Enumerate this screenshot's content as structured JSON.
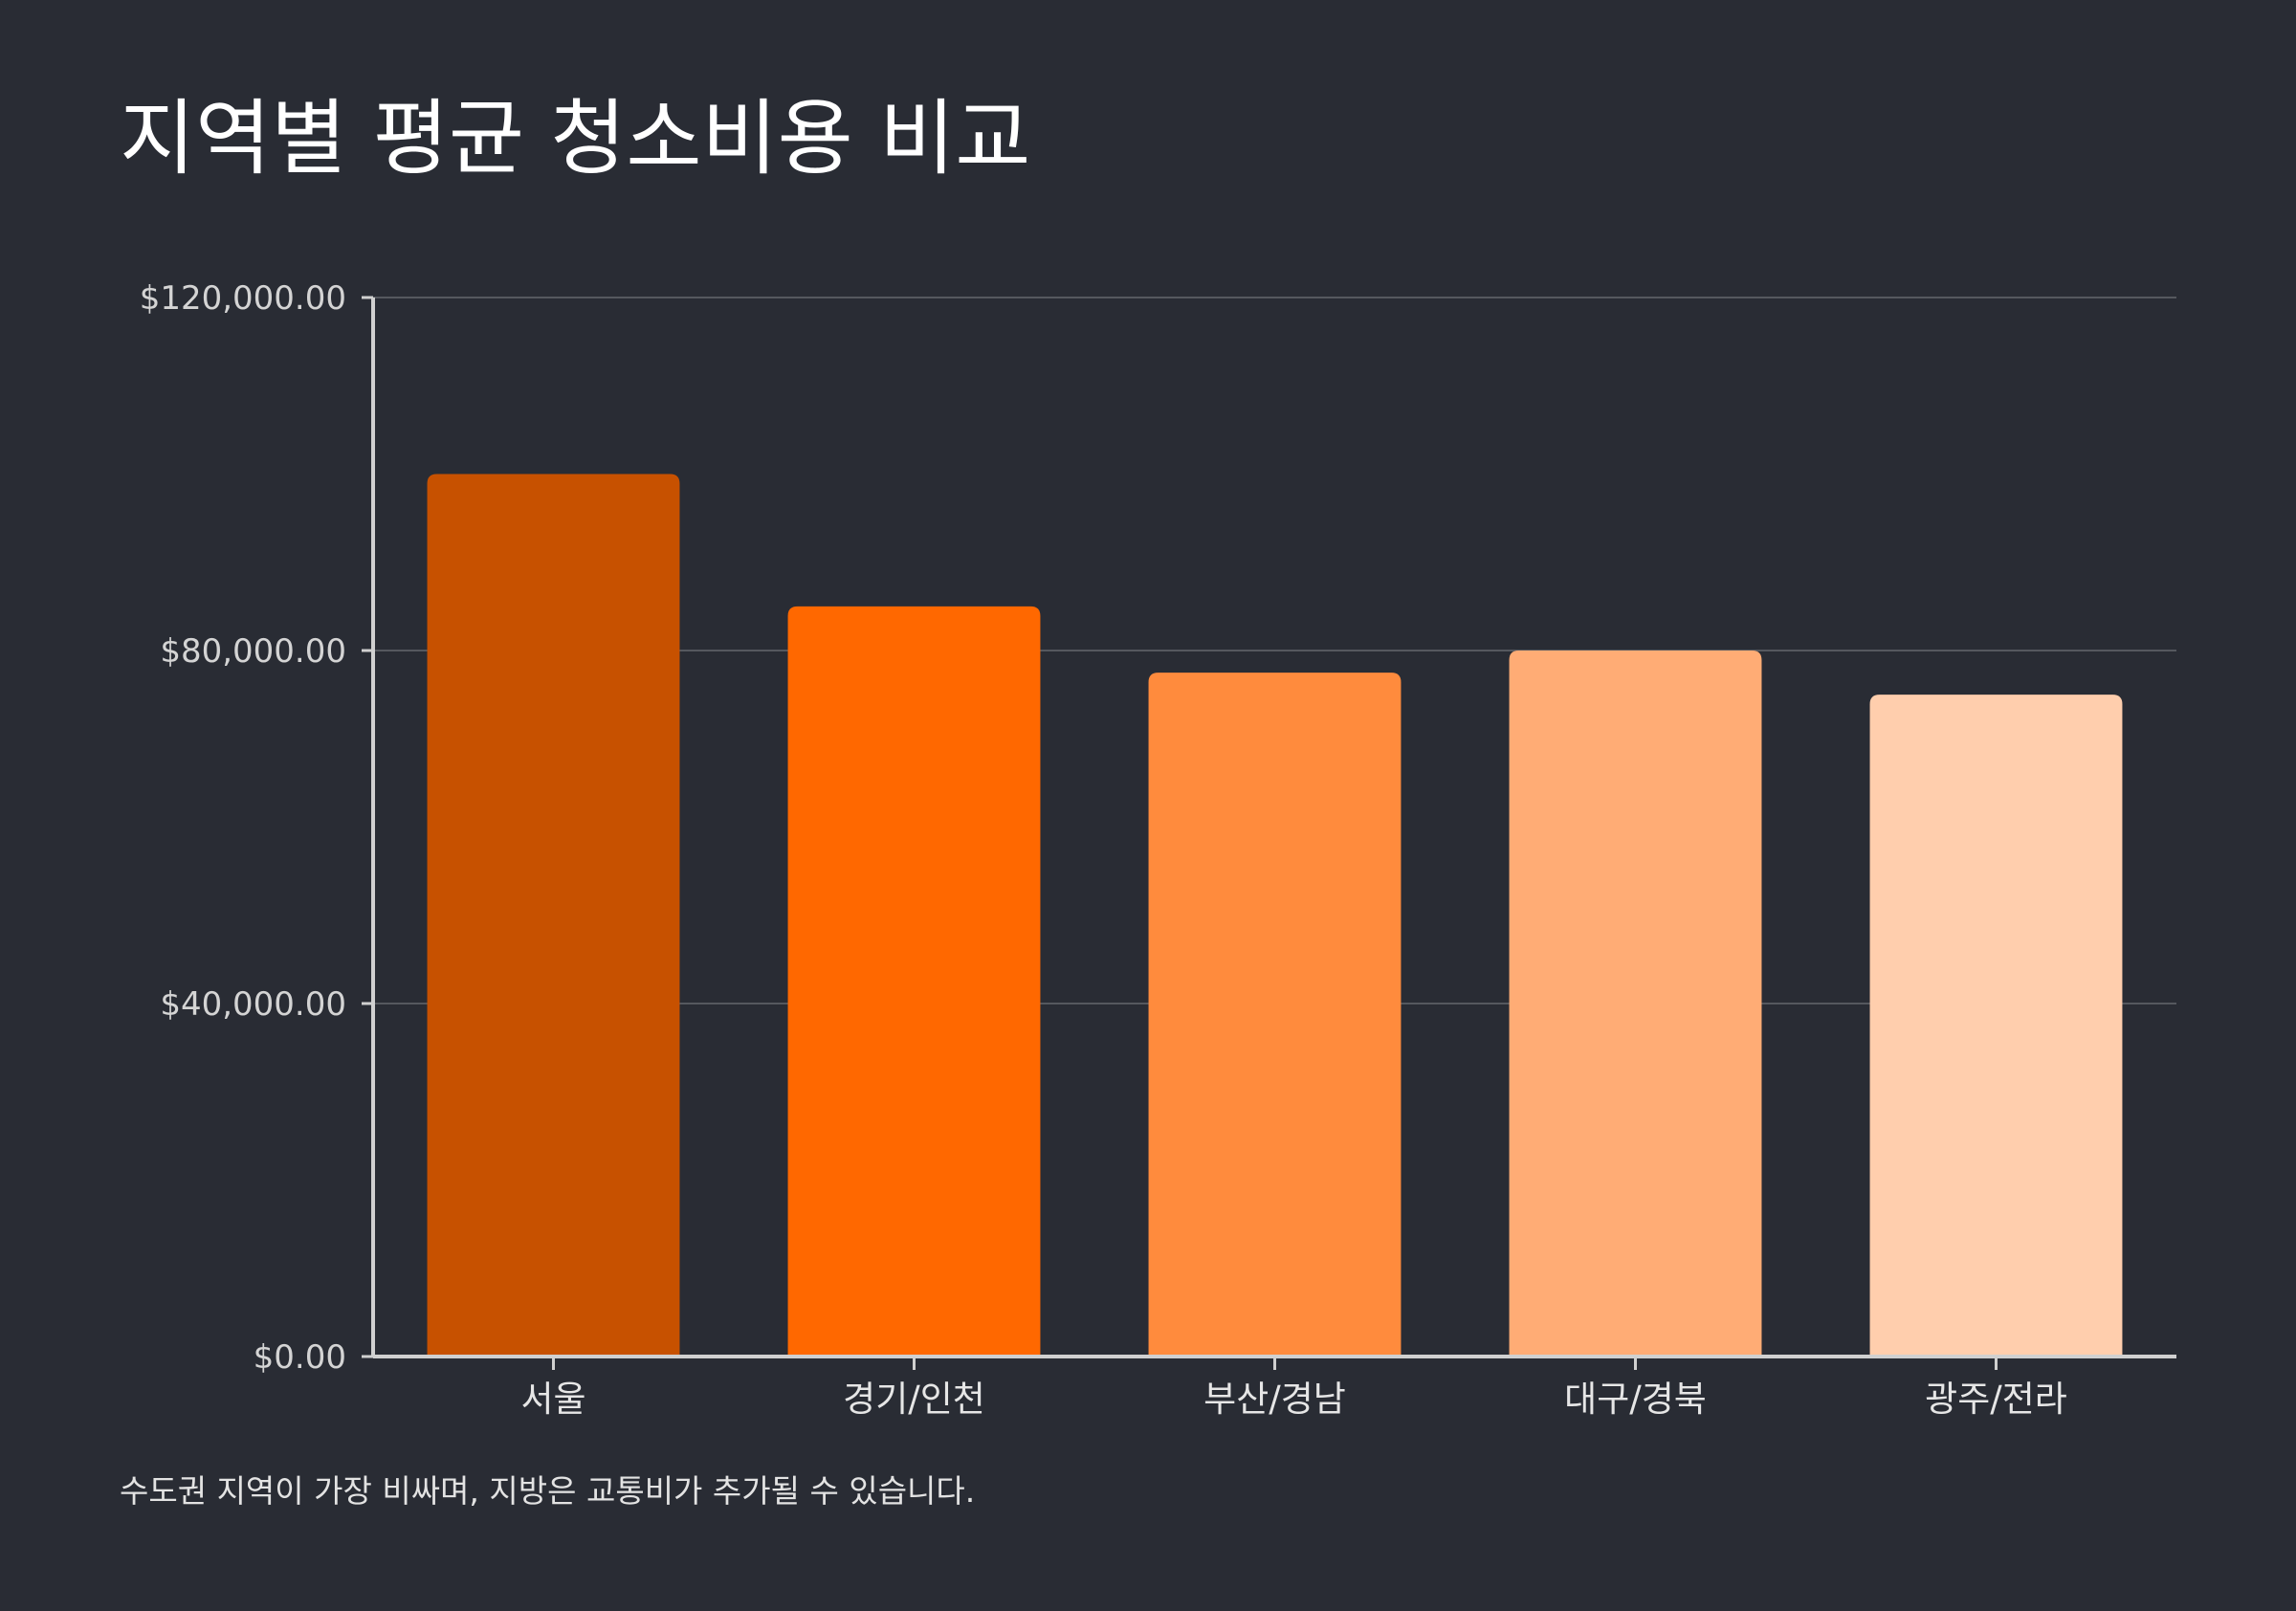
{
  "chart_data": {
    "type": "bar",
    "title": "지역별 평균 청소비용 비교",
    "note": "수도권 지역이 가장 비싸며, 지방은 교통비가 추가될 수 있습니다.",
    "xlabel": "",
    "ylabel": "",
    "categories": [
      "서울",
      "경기/인천",
      "부산/경남",
      "대구/경북",
      "광주/전라"
    ],
    "values": [
      100000,
      85000,
      77500,
      80000,
      75000
    ],
    "colors": [
      "#c75100",
      "#ff6800",
      "#ff8b3d",
      "#ffac75",
      "#ffcead"
    ],
    "ylim": [
      0,
      120000
    ],
    "yticks": [
      0,
      40000,
      80000,
      120000
    ],
    "ytick_labels": [
      "$0.00",
      "$40,000.00",
      "$80,000.00",
      "$120,000.00"
    ],
    "grid": true,
    "legend": "none"
  }
}
